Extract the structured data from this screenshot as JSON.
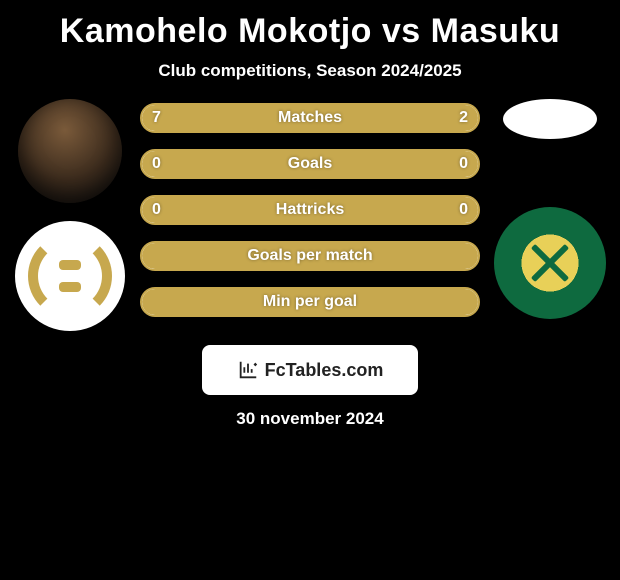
{
  "title": "Kamohelo Mokotjo vs Masuku",
  "subtitle": "Club competitions, Season 2024/2025",
  "date": "30 november 2024",
  "footer_brand": "FcTables.com",
  "colors": {
    "accent": "#c7a84e",
    "bar_bg": "#ffffff",
    "text": "#ffffff",
    "page_bg": "#000000",
    "badge2_green": "#0e6a3f",
    "badge2_yellow": "#e8d058"
  },
  "bars": [
    {
      "label": "Matches",
      "left": "7",
      "right": "2",
      "left_pct": 78,
      "right_pct": 22,
      "show_vals": true,
      "full": false
    },
    {
      "label": "Goals",
      "left": "0",
      "right": "0",
      "left_pct": 50,
      "right_pct": 50,
      "show_vals": true,
      "full": false
    },
    {
      "label": "Hattricks",
      "left": "0",
      "right": "0",
      "left_pct": 50,
      "right_pct": 50,
      "show_vals": true,
      "full": false
    },
    {
      "label": "Goals per match",
      "left": "",
      "right": "",
      "left_pct": 100,
      "right_pct": 0,
      "show_vals": false,
      "full": true
    },
    {
      "label": "Min per goal",
      "left": "",
      "right": "",
      "left_pct": 100,
      "right_pct": 0,
      "show_vals": false,
      "full": true
    }
  ]
}
